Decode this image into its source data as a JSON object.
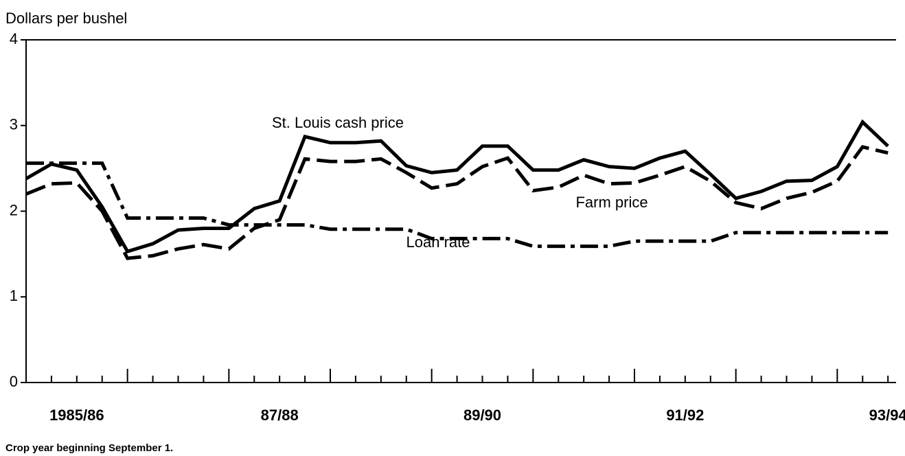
{
  "chart_data": {
    "type": "line",
    "y_axis_label": "Dollars per bushel",
    "note": "Crop year beginning September 1.",
    "annotations": [
      "St. Louis cash price",
      "Farm price",
      "Loan rate"
    ],
    "x": [
      1985,
      1985.25,
      1985.5,
      1985.75,
      1986,
      1986.25,
      1986.5,
      1986.75,
      1987,
      1987.25,
      1987.5,
      1987.75,
      1988,
      1988.25,
      1988.5,
      1988.75,
      1989,
      1989.25,
      1989.5,
      1989.75,
      1990,
      1990.25,
      1990.5,
      1990.75,
      1991,
      1991.25,
      1991.5,
      1991.75,
      1992,
      1992.25,
      1992.5,
      1992.75,
      1993,
      1993.25,
      1993.5
    ],
    "series": [
      {
        "name": "St. Louis cash price",
        "color": "#000000",
        "style": "solid",
        "values": [
          2.38,
          2.55,
          2.48,
          2.05,
          1.53,
          1.62,
          1.78,
          1.8,
          1.8,
          2.03,
          2.12,
          2.87,
          2.8,
          2.8,
          2.82,
          2.53,
          2.45,
          2.48,
          2.76,
          2.76,
          2.48,
          2.48,
          2.6,
          2.52,
          2.5,
          2.62,
          2.7,
          2.43,
          2.15,
          2.23,
          2.35,
          2.36,
          2.52,
          3.04,
          2.76
        ]
      },
      {
        "name": "Farm price",
        "color": "#000000",
        "style": "dashed",
        "values": [
          2.2,
          2.32,
          2.33,
          2.0,
          1.45,
          1.48,
          1.56,
          1.61,
          1.56,
          1.8,
          1.9,
          2.61,
          2.58,
          2.58,
          2.61,
          2.45,
          2.27,
          2.32,
          2.52,
          2.62,
          2.24,
          2.28,
          2.42,
          2.32,
          2.33,
          2.42,
          2.52,
          2.35,
          2.1,
          2.03,
          2.15,
          2.22,
          2.35,
          2.75,
          2.68
        ]
      },
      {
        "name": "Loan rate",
        "color": "#000000",
        "style": "dashdot",
        "values": [
          2.56,
          2.56,
          2.56,
          2.56,
          1.92,
          1.92,
          1.92,
          1.92,
          1.84,
          1.84,
          1.84,
          1.84,
          1.79,
          1.79,
          1.79,
          1.79,
          1.68,
          1.68,
          1.68,
          1.68,
          1.59,
          1.59,
          1.59,
          1.59,
          1.65,
          1.65,
          1.65,
          1.65,
          1.75,
          1.75,
          1.75,
          1.75,
          1.75,
          1.75,
          1.75
        ]
      }
    ],
    "xlim": [
      1985,
      1993.58
    ],
    "xticks": [
      {
        "value": 1985.5,
        "label": "1985/86"
      },
      {
        "value": 1987.5,
        "label": "87/88"
      },
      {
        "value": 1989.5,
        "label": "89/90"
      },
      {
        "value": 1991.5,
        "label": "91/92"
      },
      {
        "value": 1993.5,
        "label": "93/94"
      }
    ],
    "major_ticks": [
      1986,
      1987,
      1988,
      1989,
      1990,
      1991,
      1992,
      1993
    ],
    "minor_ticks": [
      1985.25,
      1985.5,
      1985.75,
      1986.25,
      1986.5,
      1986.75,
      1987.25,
      1987.5,
      1987.75,
      1988.25,
      1988.5,
      1988.75,
      1989.25,
      1989.5,
      1989.75,
      1990.25,
      1990.5,
      1990.75,
      1991.25,
      1991.5,
      1991.75,
      1992.25,
      1992.5,
      1992.75,
      1993.25,
      1993.5
    ],
    "ylim": [
      0,
      4
    ],
    "yticks": [
      0,
      1,
      2,
      3,
      4
    ]
  }
}
